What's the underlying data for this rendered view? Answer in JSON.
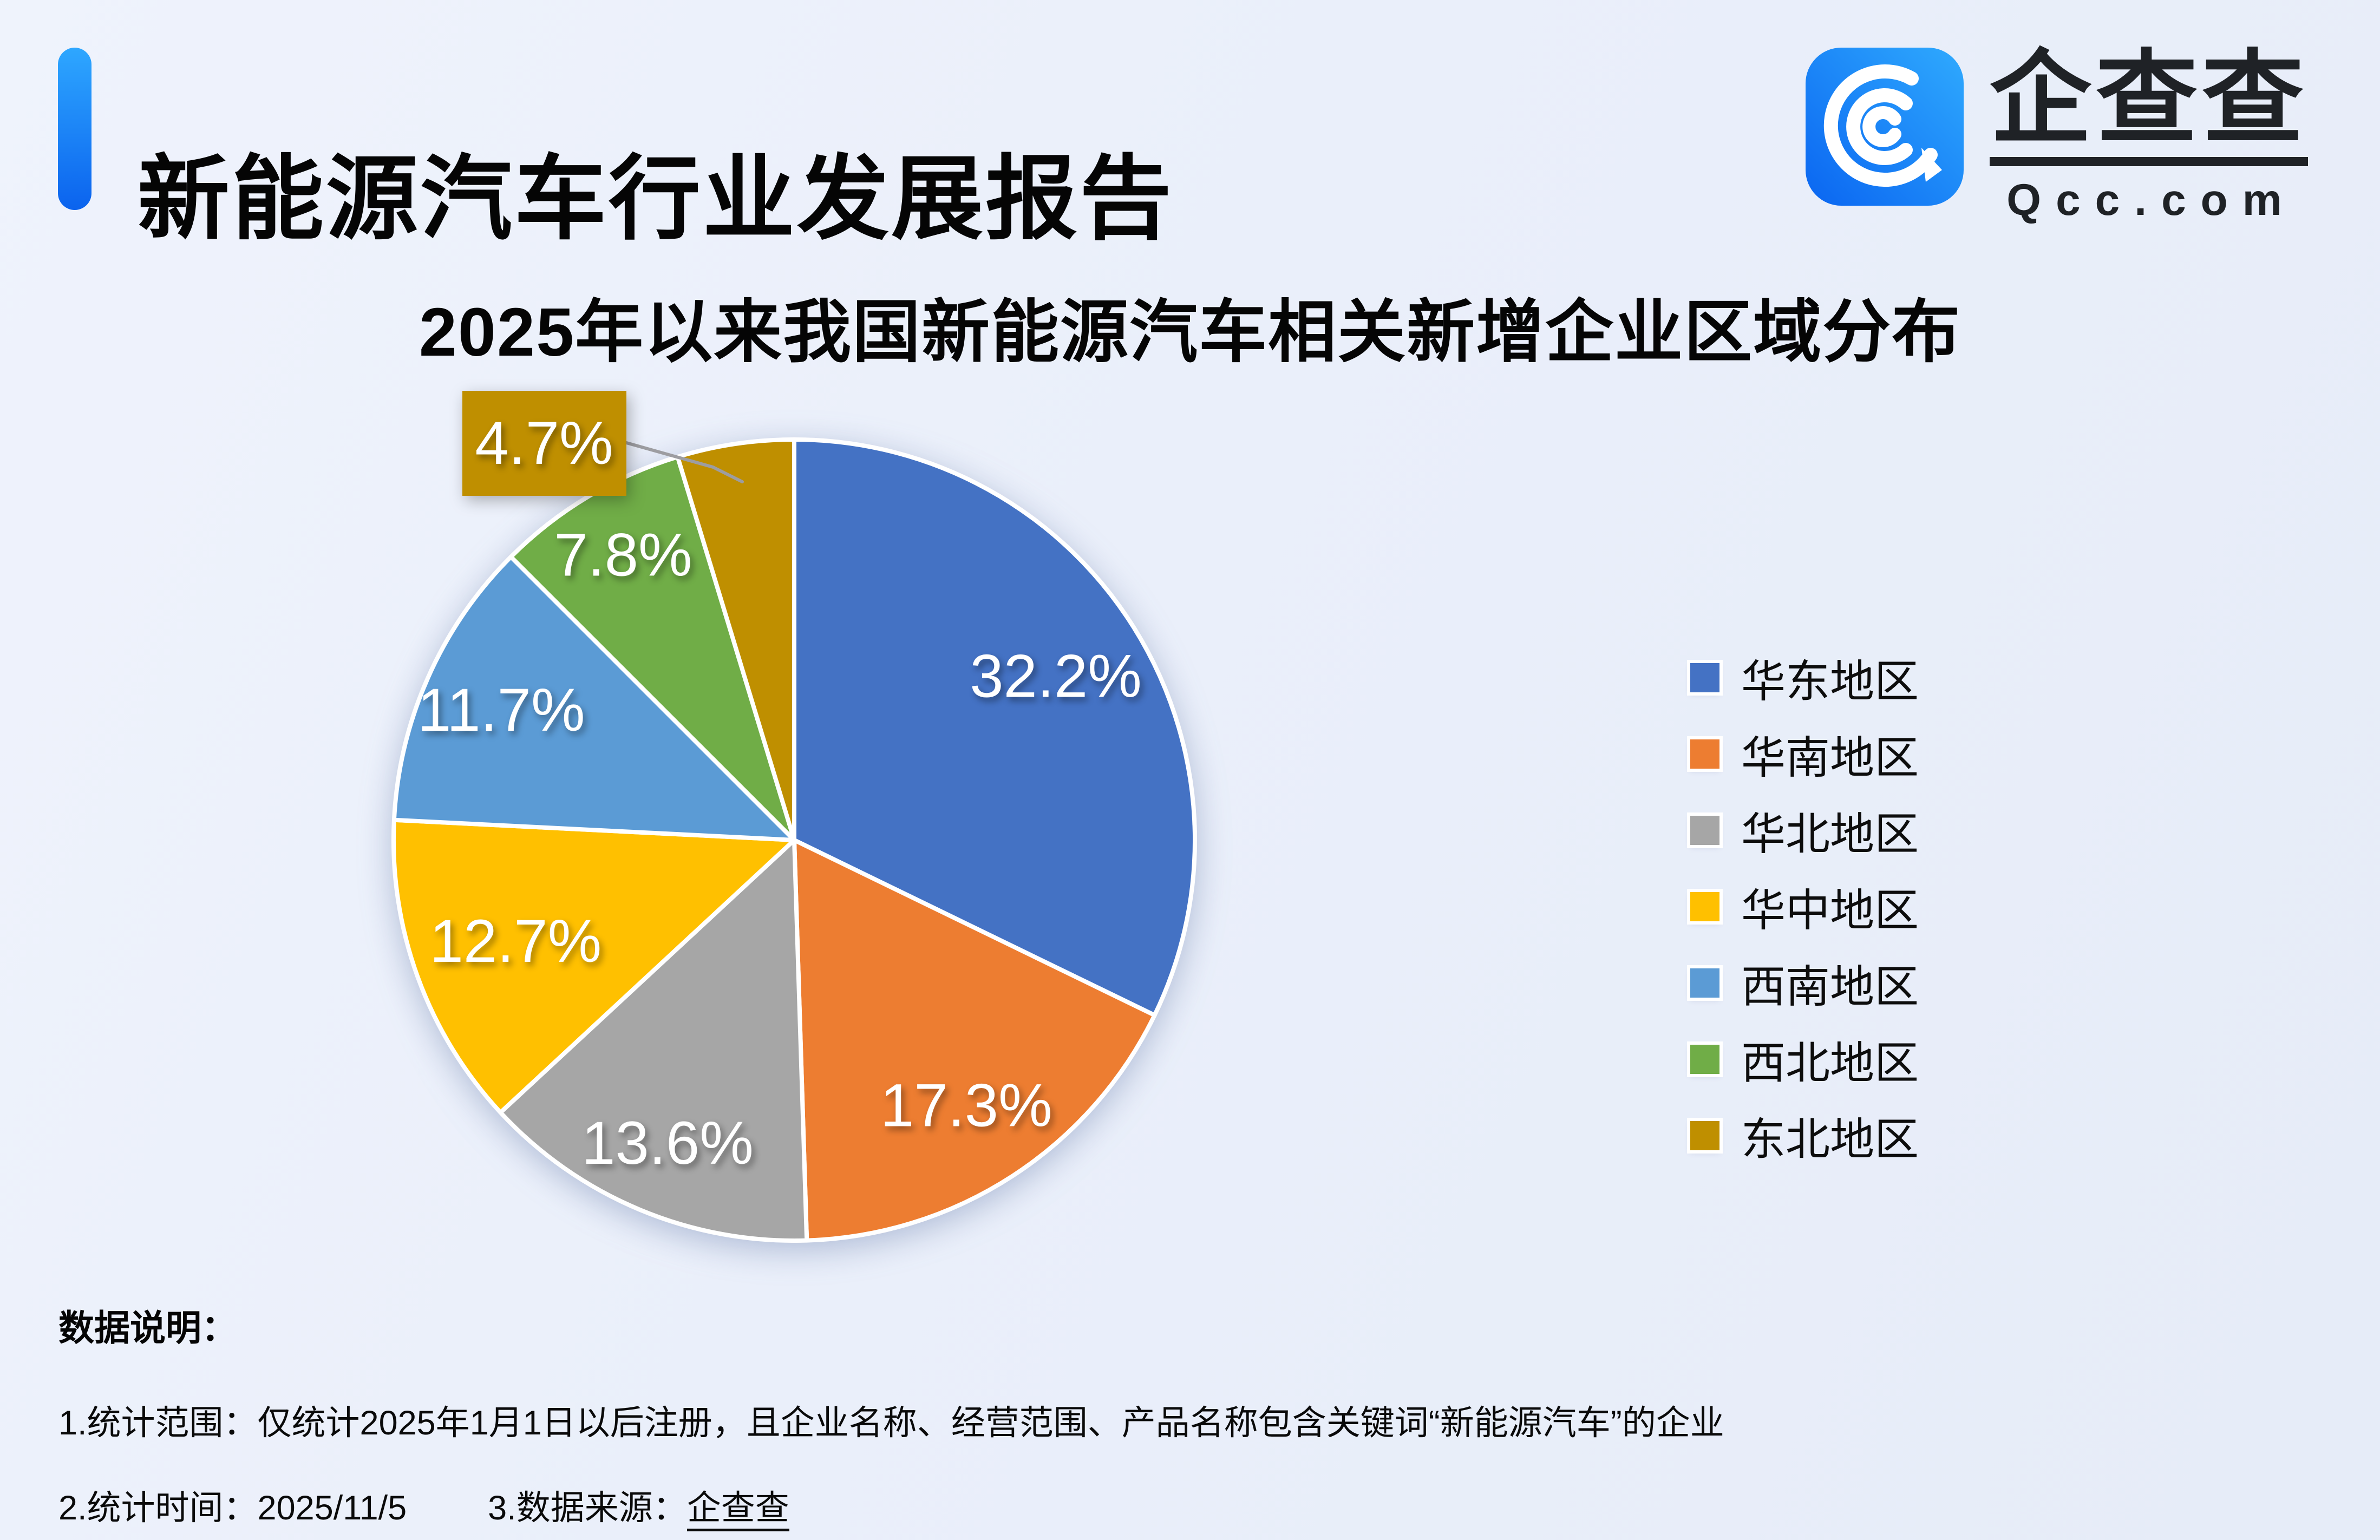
{
  "header": {
    "title": "新能源汽车行业发展报告",
    "accent_color_top": "#2EA7FF",
    "accent_color_bottom": "#0B63EE"
  },
  "logo": {
    "icon": "qcc-logo-icon",
    "icon_color_start": "#0A65F1",
    "icon_color_end": "#2FAAFE",
    "brand": "企查查",
    "domain": "Qcc.com"
  },
  "chart": {
    "title": "2025年以来我国新能源汽车相关新增企业区域分布"
  },
  "chart_data": {
    "type": "pie",
    "title": "2025年以来我国新能源汽车相关新增企业区域分布",
    "unit": "%",
    "series": [
      {
        "name": "华东地区",
        "value": 32.2,
        "color": "#4472C4"
      },
      {
        "name": "华南地区",
        "value": 17.3,
        "color": "#ED7D31"
      },
      {
        "name": "华北地区",
        "value": 13.6,
        "color": "#A6A6A6"
      },
      {
        "name": "华中地区",
        "value": 12.7,
        "color": "#FFC000"
      },
      {
        "name": "西南地区",
        "value": 11.7,
        "color": "#5B9BD5"
      },
      {
        "name": "西北地区",
        "value": 7.8,
        "color": "#70AD47"
      },
      {
        "name": "东北地区",
        "value": 4.7,
        "color": "#BF8F00"
      }
    ],
    "layout": {
      "start_angle_deg": 0,
      "direction": "clockwise",
      "legend_position": "right",
      "data_label_color": "#FFFFFF",
      "label_format": "{value}%",
      "label_radius_fractions": [
        0.77,
        0.79,
        0.82,
        0.74,
        0.8,
        0.83
      ],
      "callout_slice_index": 6,
      "leader_line_color": "#9D9DA1"
    }
  },
  "footer": {
    "heading": "数据说明：",
    "note1": "1.统计范围：仅统计2025年1月1日以后注册，且企业名称、经营范围、产品名称包含关键词“新能源汽车”的企业",
    "note2_label": "2.统计时间：",
    "note2_value": "2025/11/5",
    "note3_label": "3.数据来源：",
    "note3_value": "企查查"
  }
}
